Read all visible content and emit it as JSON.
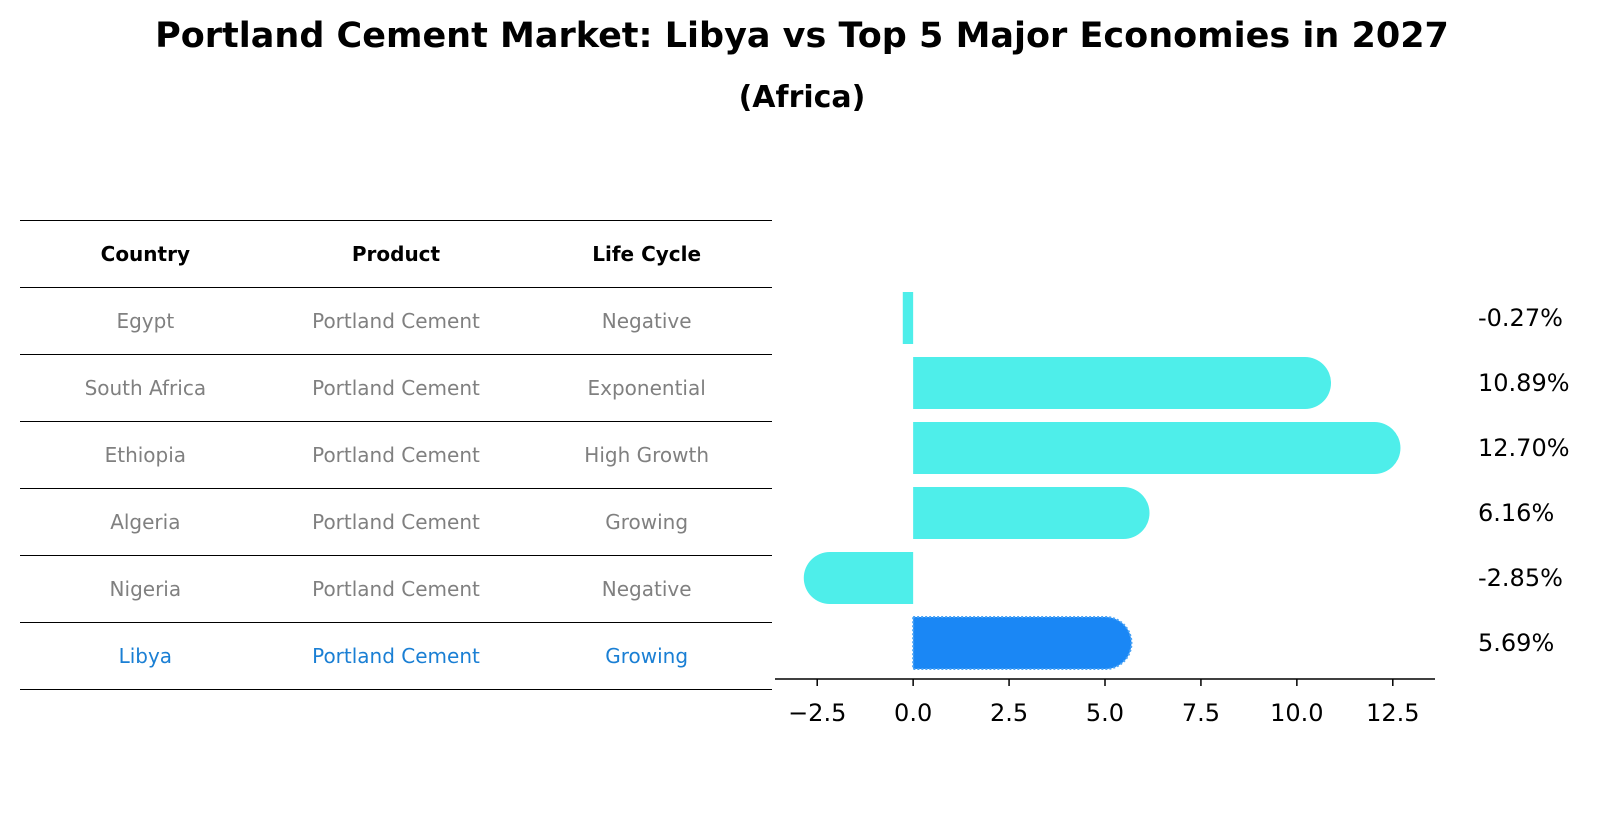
{
  "title": "Portland Cement Market: Libya vs Top 5 Major Economies in 2027",
  "subtitle": "(Africa)",
  "colors": {
    "bar": "#4eeeea",
    "highlight_bar": "#1a87f5",
    "highlight_text": "#1a7fd4",
    "muted_text": "#808080"
  },
  "table": {
    "headers": [
      "Country",
      "Product",
      "Life Cycle"
    ],
    "rows": [
      {
        "country": "Egypt",
        "product": "Portland Cement",
        "life_cycle": "Negative",
        "highlight": false
      },
      {
        "country": "South Africa",
        "product": "Portland Cement",
        "life_cycle": "Exponential",
        "highlight": false
      },
      {
        "country": "Ethiopia",
        "product": "Portland Cement",
        "life_cycle": "High Growth",
        "highlight": false
      },
      {
        "country": "Algeria",
        "product": "Portland Cement",
        "life_cycle": "Growing",
        "highlight": false
      },
      {
        "country": "Nigeria",
        "product": "Portland Cement",
        "life_cycle": "Negative",
        "highlight": false
      },
      {
        "country": "Libya",
        "product": "Portland Cement",
        "life_cycle": "Growing",
        "highlight": true
      }
    ]
  },
  "chart_data": {
    "type": "bar",
    "orientation": "horizontal",
    "categories": [
      "Egypt",
      "South Africa",
      "Ethiopia",
      "Algeria",
      "Nigeria",
      "Libya"
    ],
    "values": [
      -0.27,
      10.89,
      12.7,
      6.16,
      -2.85,
      5.69
    ],
    "value_labels": [
      "-0.27%",
      "10.89%",
      "12.70%",
      "6.16%",
      "-2.85%",
      "5.69%"
    ],
    "highlight_category": "Libya",
    "xlim": [
      -3.6,
      13.6
    ],
    "xticks": [
      -2.5,
      0.0,
      2.5,
      5.0,
      7.5,
      10.0,
      12.5
    ],
    "xtick_labels": [
      "−2.5",
      "0.0",
      "2.5",
      "5.0",
      "7.5",
      "10.0",
      "12.5"
    ],
    "grid": false
  }
}
